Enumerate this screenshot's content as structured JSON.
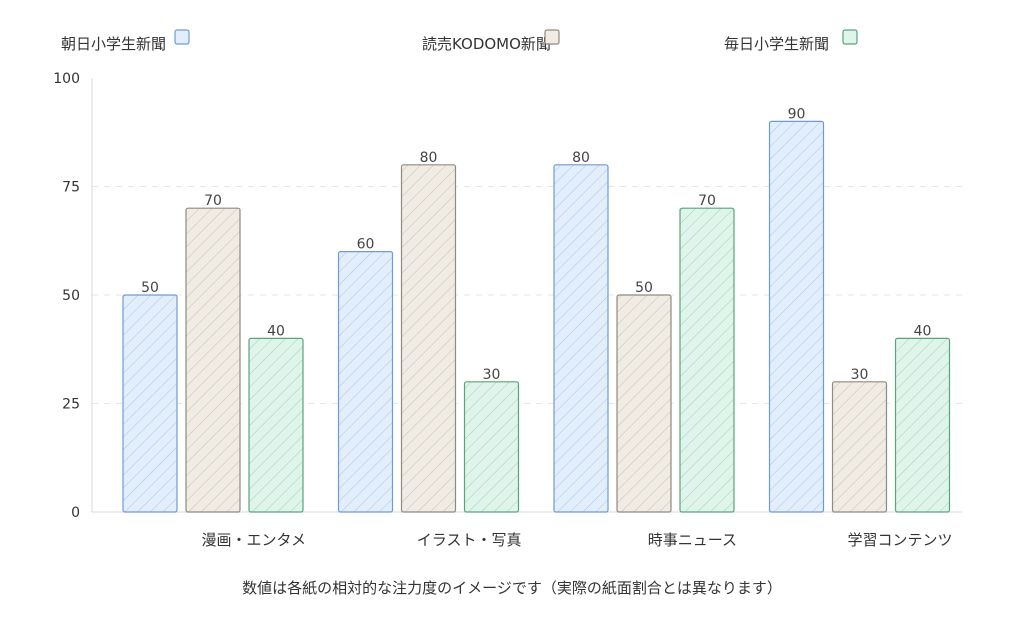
{
  "chart_data": {
    "type": "bar",
    "categories": [
      "漫画・エンタメ",
      "イラスト・写真",
      "時事ニュース",
      "学習コンテンツ"
    ],
    "series": [
      {
        "name": "朝日小学生新聞",
        "values": [
          50,
          60,
          80,
          90
        ],
        "fill": "#e3eefc",
        "stroke": "#6f9bd1",
        "hatch": "#a9c4e8"
      },
      {
        "name": "読売KODOMO新聞",
        "values": [
          70,
          80,
          50,
          30
        ],
        "fill": "#f0ebe3",
        "stroke": "#8f8a82",
        "hatch": "#c7c0b4"
      },
      {
        "name": "毎日小学生新聞",
        "values": [
          40,
          30,
          70,
          40
        ],
        "fill": "#dff4ea",
        "stroke": "#5aa37f",
        "hatch": "#9fd3b8"
      }
    ],
    "yticks": [
      "0",
      "25",
      "50",
      "75",
      "100"
    ],
    "ylim": [
      0,
      100
    ],
    "grid": true,
    "legend_position": "top",
    "caption": "数値は各紙の相対的な注力度のイメージです（実際の紙面割合とは異なります）"
  }
}
